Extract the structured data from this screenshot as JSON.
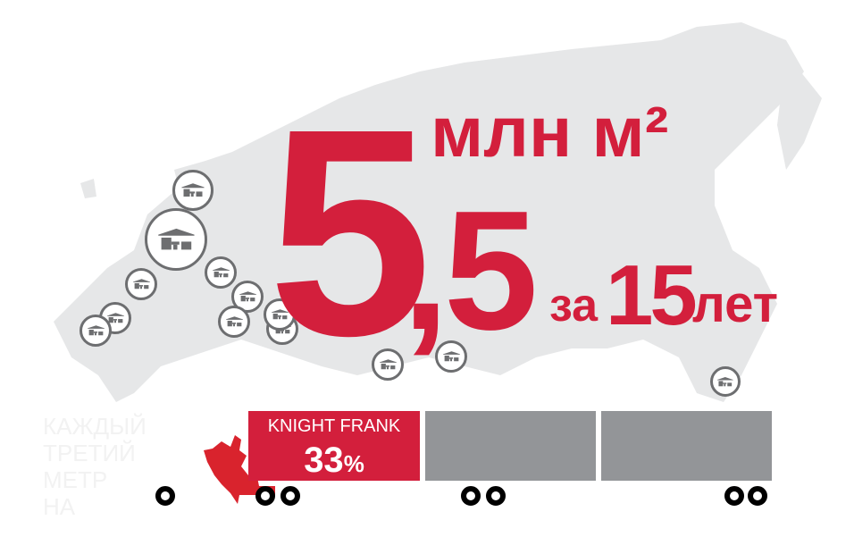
{
  "headline": {
    "number_int": "5",
    "number_frac": ",5",
    "unit": "млн м²",
    "period_prefix": "за",
    "period_number": "15",
    "period_suffix": "лет"
  },
  "faint_caption": [
    "КАЖДЫЙ",
    "ТРЕТИЙ",
    "МЕТР",
    "НА"
  ],
  "truck": {
    "company": "KNIGHT FRANK",
    "share_value": "33",
    "share_unit": "%",
    "share_fraction": 0.33
  },
  "colors": {
    "accent": "#d31f3c",
    "map": "#e6e7e8",
    "container": "#939598",
    "icon": "#6d6e70"
  },
  "icons": [
    "warehouse-icon",
    "russian-eagle-emblem",
    "wheel-icon"
  ]
}
